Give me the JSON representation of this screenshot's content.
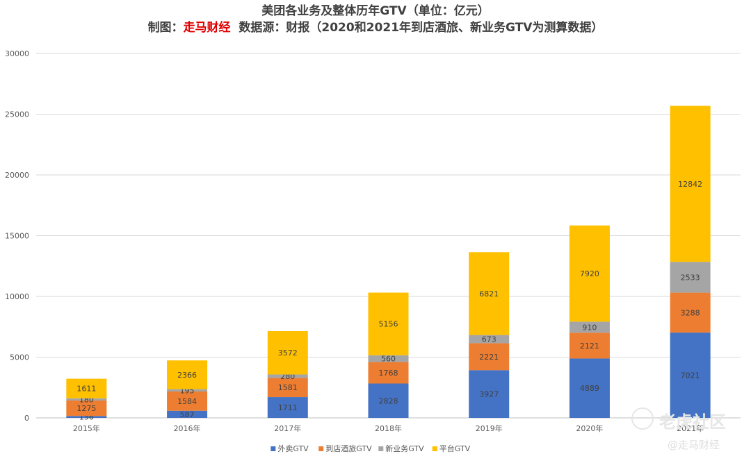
{
  "chart_data": {
    "type": "bar",
    "stacked": true,
    "title": "美团各业务及整体历年GTV（单位：亿元）",
    "subtitle": {
      "prefix": "制图：",
      "brand": "走马财经",
      "suffix": "  数据源：财报（2020和2021年到店酒旅、新业务GTV为测算数据）"
    },
    "categories": [
      "2015年",
      "2016年",
      "2017年",
      "2018年",
      "2019年",
      "2020年",
      "2021年"
    ],
    "ylim": [
      0,
      30000
    ],
    "yticks": [
      0,
      5000,
      10000,
      15000,
      20000,
      25000,
      30000
    ],
    "grid": true,
    "legend_position": "bottom",
    "series": [
      {
        "name": "外卖GTV",
        "color": "#4472C4",
        "values": [
          156,
          587,
          1711,
          2828,
          3927,
          4889,
          7021
        ]
      },
      {
        "name": "到店酒旅GTV",
        "color": "#ED7D31",
        "values": [
          1275,
          1584,
          1581,
          1768,
          2221,
          2121,
          3288
        ]
      },
      {
        "name": "新业务GTV",
        "color": "#A5A5A5",
        "values": [
          180,
          195,
          280,
          560,
          673,
          910,
          2533
        ]
      },
      {
        "name": "平台GTV",
        "color": "#FFC000",
        "values": [
          1611,
          2366,
          3572,
          5156,
          6821,
          7920,
          12842
        ]
      }
    ]
  },
  "watermark": {
    "text1": "老虎社区",
    "text2": "@走马财经"
  }
}
